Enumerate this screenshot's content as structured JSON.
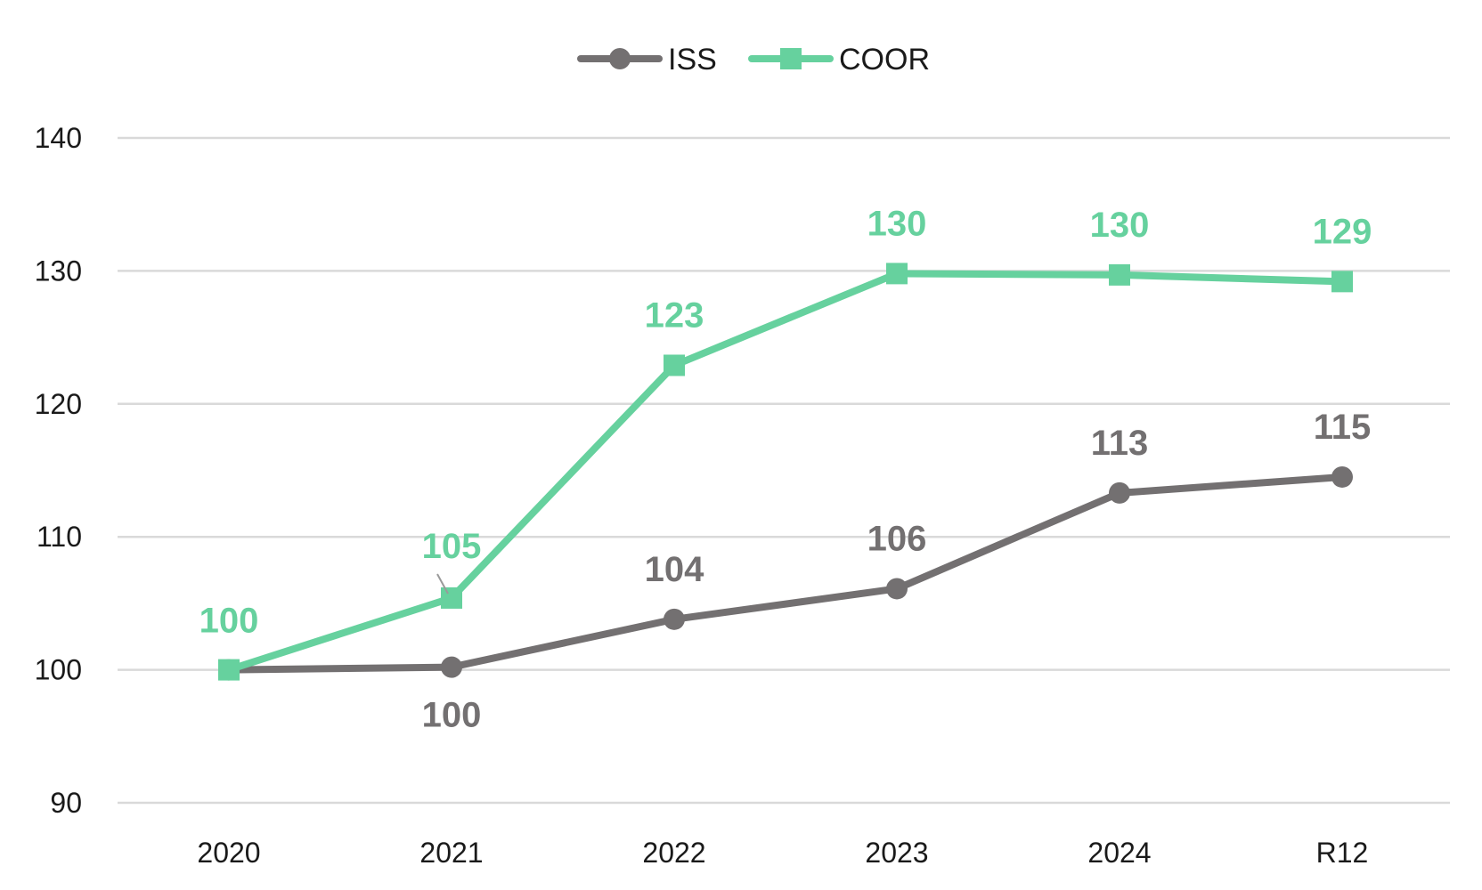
{
  "chart_data": {
    "type": "line",
    "categories": [
      "2020",
      "2021",
      "2022",
      "2023",
      "2024",
      "R12"
    ],
    "series": [
      {
        "name": "ISS",
        "values": [
          100,
          100.2,
          103.8,
          106.1,
          113.3,
          114.5
        ],
        "labels": [
          "",
          "100",
          "104",
          "106",
          "113",
          "115"
        ],
        "label_position": [
          "none",
          "below",
          "above",
          "above",
          "above",
          "above"
        ],
        "color": "#737071",
        "marker": "circle"
      },
      {
        "name": "COOR",
        "values": [
          100,
          105.4,
          122.9,
          129.8,
          129.7,
          129.2
        ],
        "labels": [
          "100",
          "105",
          "123",
          "130",
          "130",
          "129"
        ],
        "label_position": [
          "above",
          "above",
          "above",
          "above",
          "above",
          "above"
        ],
        "color": "#66d19e",
        "marker": "square"
      }
    ],
    "yticks": [
      "90",
      "100",
      "110",
      "120",
      "130",
      "140"
    ],
    "ylim": [
      90,
      140
    ],
    "grid": true,
    "legend_position": "top-center",
    "gridline_color": "#d9d9d9"
  }
}
